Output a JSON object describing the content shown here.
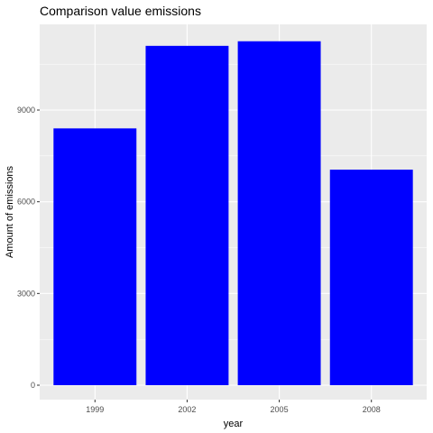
{
  "chart_data": {
    "type": "bar",
    "title": "Comparison value emissions",
    "xlabel": "year",
    "ylabel": "Amount of emissions",
    "categories": [
      "1999",
      "2002",
      "2005",
      "2008"
    ],
    "values": [
      8400,
      11100,
      11250,
      7050
    ],
    "ylim": [
      0,
      12000
    ],
    "y_ticks": [
      0,
      3000,
      6000,
      9000
    ],
    "y_tick_labels": [
      "0",
      "3000",
      "6000",
      "9000"
    ],
    "grid": true,
    "legend": "none",
    "colors": {
      "bar": "#0000ff",
      "panel_background": "#ebebeb",
      "grid_major": "#ffffff",
      "tick_text": "#4d4d4d"
    }
  }
}
